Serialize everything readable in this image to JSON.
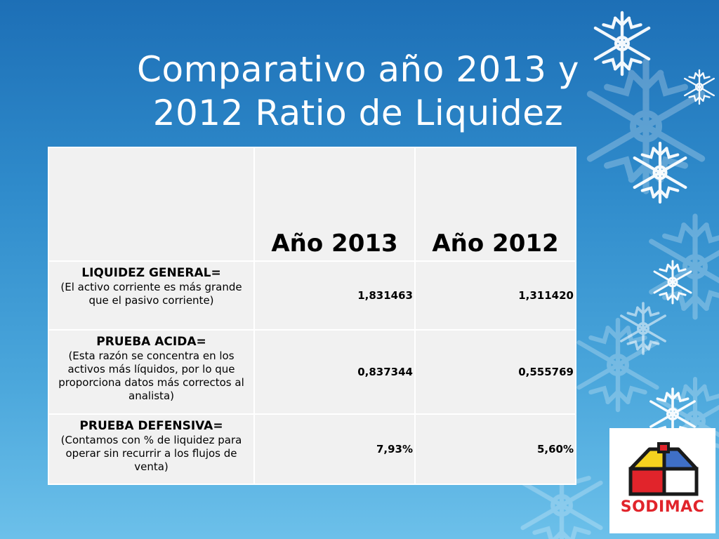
{
  "slide": {
    "title_line1": "Comparativo año 2013 y",
    "title_line2": "2012 Ratio de Liquidez"
  },
  "table": {
    "headers": [
      "",
      "Año 2013",
      "Año 2012"
    ],
    "rows": [
      {
        "name": "LIQUIDEZ GENERAL=",
        "description": "(El activo corriente es más grande que el pasivo corriente)",
        "values": [
          "1,831463",
          "1,311420"
        ]
      },
      {
        "name": "PRUEBA ACIDA=",
        "description": "(Esta razón se concentra en los activos más líquidos, por lo que proporciona datos más correctos al analista)",
        "values": [
          "0,837344",
          "0,555769"
        ]
      },
      {
        "name": "PRUEBA DEFENSIVA=",
        "description": "(Contamos con % de liquidez para operar sin recurrir a los flujos de venta)",
        "values": [
          "7,93%",
          "5,60%"
        ]
      }
    ]
  },
  "logo": {
    "text": "SODIMAC",
    "colors": {
      "red": "#e1242b",
      "yellow": "#f4d21f",
      "blue": "#3f6fc7",
      "outline": "#1a1a1a"
    }
  },
  "theme": {
    "background_top": "#1d6fb6",
    "background_bottom": "#6cc0ea",
    "table_fill": "#f1f1f1",
    "snowflake_color": "#ffffff"
  }
}
